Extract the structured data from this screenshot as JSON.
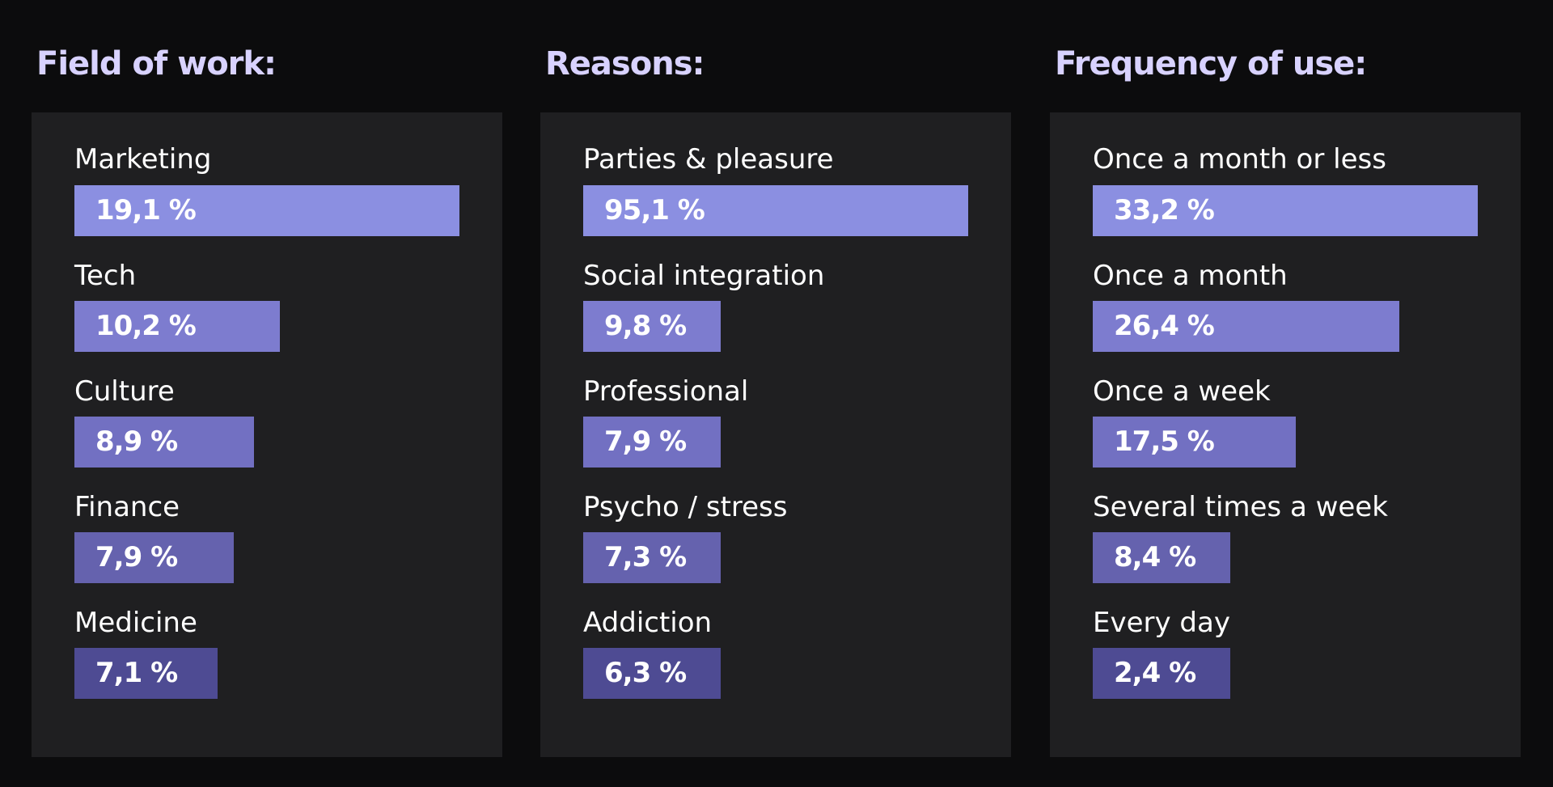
{
  "chart_data": [
    {
      "type": "bar",
      "title": "Field of work:",
      "categories": [
        "Marketing",
        "Tech",
        "Culture",
        "Finance",
        "Medicine"
      ],
      "values": [
        19.1,
        10.2,
        8.9,
        7.9,
        7.1
      ],
      "value_labels": [
        "19,1 %",
        "10,2 %",
        "8,9 %",
        "7,9 %",
        "7,1 %"
      ],
      "orientation": "horizontal"
    },
    {
      "type": "bar",
      "title": "Reasons:",
      "categories": [
        "Parties & pleasure",
        "Social integration",
        "Professional",
        "Psycho / stress",
        "Addiction"
      ],
      "values": [
        95.1,
        9.8,
        7.9,
        7.3,
        6.3
      ],
      "value_labels": [
        "95,1 %",
        "9,8 %",
        "7,9 %",
        "7,3 %",
        "6,3 %"
      ],
      "orientation": "horizontal"
    },
    {
      "type": "bar",
      "title": "Frequency of use:",
      "categories": [
        "Once a month or less",
        "Once a month",
        "Once a week",
        "Several times a week",
        "Every day"
      ],
      "values": [
        33.2,
        26.4,
        17.5,
        8.4,
        2.4
      ],
      "value_labels": [
        "33,2 %",
        "26,4 %",
        "17,5 %",
        "8,4 %",
        "2,4 %"
      ],
      "orientation": "horizontal"
    }
  ],
  "colors": {
    "background": "#0c0c0d",
    "panel": "#1f1f21",
    "title": "#d8d2ff",
    "text": "#ffffff",
    "bar_shades": [
      "#8b8fe1",
      "#7d7ccf",
      "#7270c2",
      "#6562ae",
      "#4e4b93"
    ]
  }
}
